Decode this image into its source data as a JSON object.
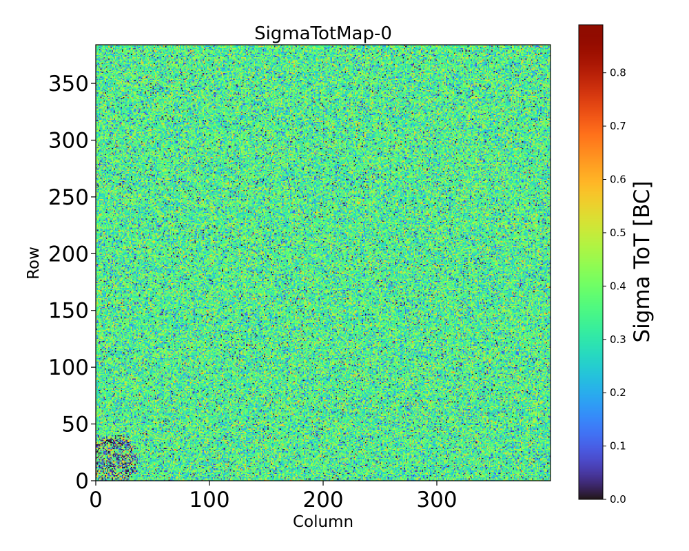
{
  "chart_data": {
    "type": "heatmap",
    "title": "SigmaTotMap-0",
    "xlabel": "Column",
    "ylabel": "Row",
    "xlim": [
      0,
      400
    ],
    "ylim": [
      0,
      384
    ],
    "x_ticks": [
      0,
      100,
      200,
      300
    ],
    "y_ticks": [
      0,
      50,
      100,
      150,
      200,
      250,
      300,
      350
    ],
    "grid": false,
    "colormap": "turbo",
    "colorbar": {
      "label": "Sigma ToT [BC]",
      "range": [
        0.0,
        0.89
      ],
      "ticks": [
        "0.0",
        "0.1",
        "0.2",
        "0.3",
        "0.4",
        "0.5",
        "0.6",
        "0.7",
        "0.8"
      ]
    },
    "value_distribution": {
      "typical_mean": 0.35,
      "typical_std": 0.1,
      "noisy_region": {
        "columns": [
          0,
          40
        ],
        "rows": [
          0,
          40
        ],
        "note": "higher variance, many near-zero values"
      }
    }
  }
}
